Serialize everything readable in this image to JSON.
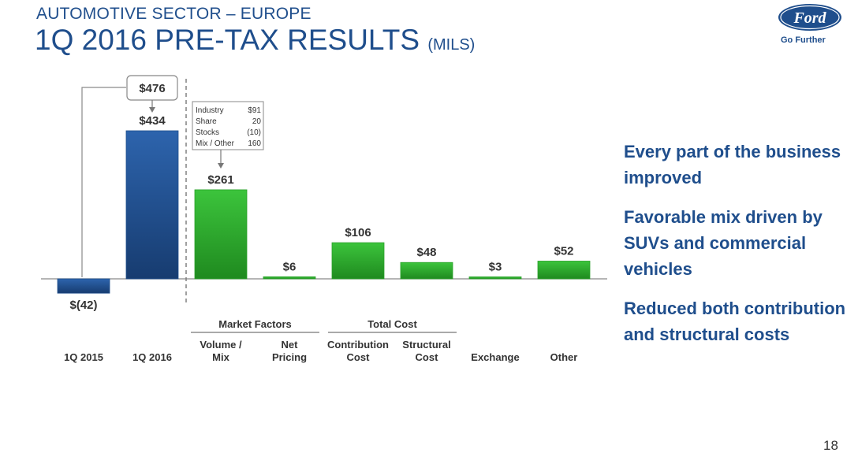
{
  "header": {
    "kicker": "AUTOMOTIVE SECTOR – EUROPE",
    "title": "1Q 2016 PRE-TAX RESULTS",
    "title_unit": "(MILS)"
  },
  "brand": {
    "logo_text": "Ford",
    "tagline": "Go Further",
    "color": "#1f4e8c"
  },
  "bullets": [
    "Every part of the business improved",
    "Favorable mix driven by SUVs and commercial vehicles",
    "Reduced both contribution and structural costs"
  ],
  "page_number": "18",
  "colors": {
    "blue": "#1f4e8c",
    "green": "#2aa02a",
    "text": "#333333"
  },
  "chart_data": {
    "type": "bar",
    "subtype": "waterfall",
    "categories": [
      "1Q 2015",
      "1Q 2016",
      "Volume / Mix",
      "Net Pricing",
      "Contribution Cost",
      "Structural Cost",
      "Exchange",
      "Other"
    ],
    "category_labels": [
      [
        "1Q 2015"
      ],
      [
        "1Q 2016"
      ],
      [
        "Volume /",
        "Mix"
      ],
      [
        "Net",
        "Pricing"
      ],
      [
        "Contribution",
        "Cost"
      ],
      [
        "Structural",
        "Cost"
      ],
      [
        "Exchange"
      ],
      [
        "Other"
      ]
    ],
    "values": [
      -42,
      434,
      261,
      6,
      106,
      48,
      3,
      52
    ],
    "value_labels": [
      "$(42)",
      "$434",
      "$261",
      "$6",
      "$106",
      "$48",
      "$3",
      "$52"
    ],
    "bar_colors": [
      "blue",
      "blue",
      "green",
      "green",
      "green",
      "green",
      "green",
      "green"
    ],
    "groups": [
      {
        "label": "Market Factors",
        "start": 2,
        "end": 3
      },
      {
        "label": "Total Cost",
        "start": 4,
        "end": 5
      }
    ],
    "callout_total": {
      "label": "$476",
      "category": "1Q 2016"
    },
    "volume_mix_breakdown": {
      "category": "Volume / Mix",
      "rows": [
        {
          "label": "Industry",
          "value": "$91"
        },
        {
          "label": "Share",
          "value": "20"
        },
        {
          "label": "Stocks",
          "value": "(10)"
        },
        {
          "label": "Mix / Other",
          "value": "160"
        }
      ]
    },
    "ylim": [
      -42,
      434
    ],
    "xlabel": "",
    "ylabel": ""
  }
}
